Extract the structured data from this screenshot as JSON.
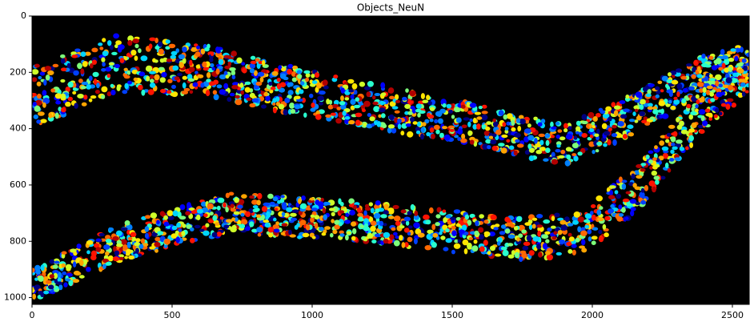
{
  "chart_data": {
    "type": "image",
    "title": "Objects_NeuN",
    "xlim": [
      0,
      2560
    ],
    "ylim": [
      1024,
      0
    ],
    "xticks": [
      0,
      500,
      1000,
      1500,
      2000,
      2500
    ],
    "yticks": [
      0,
      200,
      400,
      600,
      800,
      1000
    ]
  }
}
